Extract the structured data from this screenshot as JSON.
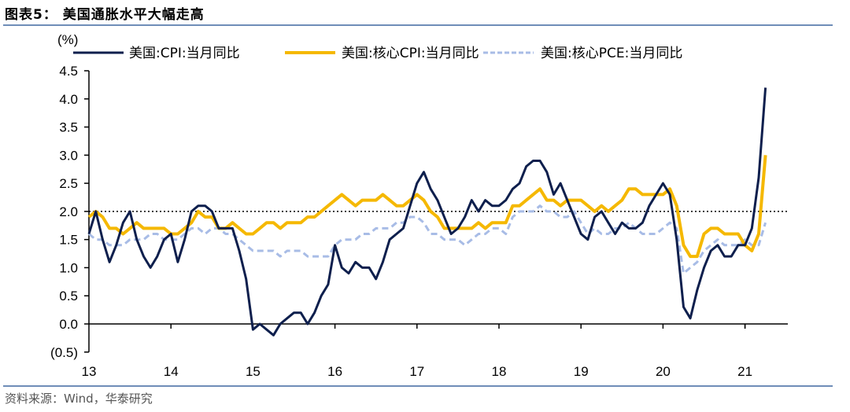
{
  "header": {
    "title": "图表5： 美国通胀水平大幅走高"
  },
  "footer": {
    "source": "资料来源：Wind，华泰研究"
  },
  "chart_data": {
    "type": "line",
    "title": "美国通胀水平大幅走高",
    "ylabel": "(%)",
    "xlabel": "",
    "ylim": [
      -0.5,
      4.5
    ],
    "yticks": [
      -0.5,
      0.0,
      0.5,
      1.0,
      1.5,
      2.0,
      2.5,
      3.0,
      3.5,
      4.0,
      4.5
    ],
    "ytick_labels": [
      "(0.5)",
      "0.0",
      "0.5",
      "1.0",
      "1.5",
      "2.0",
      "2.5",
      "3.0",
      "3.5",
      "4.0",
      "4.5"
    ],
    "xtick_labels": [
      "13",
      "14",
      "15",
      "16",
      "17",
      "18",
      "19",
      "20",
      "21"
    ],
    "x_start": "2013-01",
    "x_frequency": "monthly",
    "reference_line": {
      "value": 2.0,
      "style": "dotted",
      "color": "#000000"
    },
    "legend_position": "top",
    "grid": false,
    "series": [
      {
        "name": "美国:CPI:当月同比",
        "color": "#0e1f4d",
        "style": "solid",
        "values": [
          1.6,
          2.0,
          1.5,
          1.1,
          1.4,
          1.8,
          2.0,
          1.5,
          1.2,
          1.0,
          1.2,
          1.5,
          1.6,
          1.1,
          1.5,
          2.0,
          2.1,
          2.1,
          2.0,
          1.7,
          1.7,
          1.7,
          1.3,
          0.8,
          -0.1,
          0.0,
          -0.1,
          -0.2,
          0.0,
          0.1,
          0.2,
          0.2,
          0.0,
          0.2,
          0.5,
          0.7,
          1.4,
          1.0,
          0.9,
          1.1,
          1.0,
          1.0,
          0.8,
          1.1,
          1.5,
          1.6,
          1.7,
          2.1,
          2.5,
          2.7,
          2.4,
          2.2,
          1.9,
          1.6,
          1.7,
          1.9,
          2.2,
          2.0,
          2.2,
          2.1,
          2.1,
          2.2,
          2.4,
          2.5,
          2.8,
          2.9,
          2.9,
          2.7,
          2.3,
          2.5,
          2.2,
          1.9,
          1.6,
          1.5,
          1.9,
          2.0,
          1.8,
          1.6,
          1.8,
          1.7,
          1.7,
          1.8,
          2.1,
          2.3,
          2.5,
          2.3,
          1.5,
          0.3,
          0.1,
          0.6,
          1.0,
          1.3,
          1.4,
          1.2,
          1.2,
          1.4,
          1.4,
          1.7,
          2.6,
          4.2
        ]
      },
      {
        "name": "美国:核心CPI:当月同比",
        "color": "#f5b800",
        "style": "solid",
        "values": [
          1.9,
          2.0,
          1.9,
          1.7,
          1.7,
          1.6,
          1.7,
          1.8,
          1.7,
          1.7,
          1.7,
          1.7,
          1.6,
          1.6,
          1.7,
          1.8,
          2.0,
          1.9,
          1.9,
          1.7,
          1.7,
          1.8,
          1.7,
          1.6,
          1.6,
          1.7,
          1.8,
          1.8,
          1.7,
          1.8,
          1.8,
          1.8,
          1.9,
          1.9,
          2.0,
          2.1,
          2.2,
          2.3,
          2.2,
          2.1,
          2.2,
          2.2,
          2.2,
          2.3,
          2.2,
          2.1,
          2.1,
          2.2,
          2.3,
          2.2,
          2.0,
          1.9,
          1.7,
          1.7,
          1.7,
          1.7,
          1.7,
          1.8,
          1.7,
          1.8,
          1.8,
          1.8,
          2.1,
          2.1,
          2.2,
          2.3,
          2.4,
          2.2,
          2.2,
          2.1,
          2.2,
          2.2,
          2.2,
          2.1,
          2.0,
          2.1,
          2.0,
          2.1,
          2.2,
          2.4,
          2.4,
          2.3,
          2.3,
          2.3,
          2.3,
          2.4,
          2.1,
          1.4,
          1.2,
          1.2,
          1.6,
          1.7,
          1.7,
          1.6,
          1.6,
          1.6,
          1.4,
          1.3,
          1.6,
          3.0
        ]
      },
      {
        "name": "美国:核心PCE:当月同比",
        "color": "#a8bce6",
        "style": "dashed",
        "values": [
          1.6,
          1.5,
          1.5,
          1.4,
          1.4,
          1.4,
          1.5,
          1.5,
          1.5,
          1.6,
          1.6,
          1.5,
          1.5,
          1.5,
          1.6,
          1.7,
          1.7,
          1.6,
          1.7,
          1.7,
          1.6,
          1.6,
          1.5,
          1.4,
          1.3,
          1.3,
          1.3,
          1.3,
          1.2,
          1.3,
          1.3,
          1.3,
          1.2,
          1.2,
          1.2,
          1.2,
          1.4,
          1.5,
          1.5,
          1.5,
          1.6,
          1.6,
          1.7,
          1.7,
          1.7,
          1.8,
          1.8,
          1.9,
          1.9,
          1.8,
          1.6,
          1.6,
          1.5,
          1.5,
          1.5,
          1.4,
          1.5,
          1.6,
          1.6,
          1.7,
          1.7,
          1.6,
          1.9,
          2.0,
          2.0,
          2.0,
          2.1,
          2.0,
          2.0,
          1.9,
          1.9,
          2.0,
          1.8,
          1.6,
          1.7,
          1.6,
          1.6,
          1.7,
          1.7,
          1.8,
          1.7,
          1.6,
          1.6,
          1.6,
          1.7,
          1.8,
          1.7,
          0.9,
          1.0,
          1.1,
          1.3,
          1.4,
          1.5,
          1.4,
          1.4,
          1.4,
          1.5,
          1.4,
          1.4,
          1.8
        ]
      }
    ]
  }
}
